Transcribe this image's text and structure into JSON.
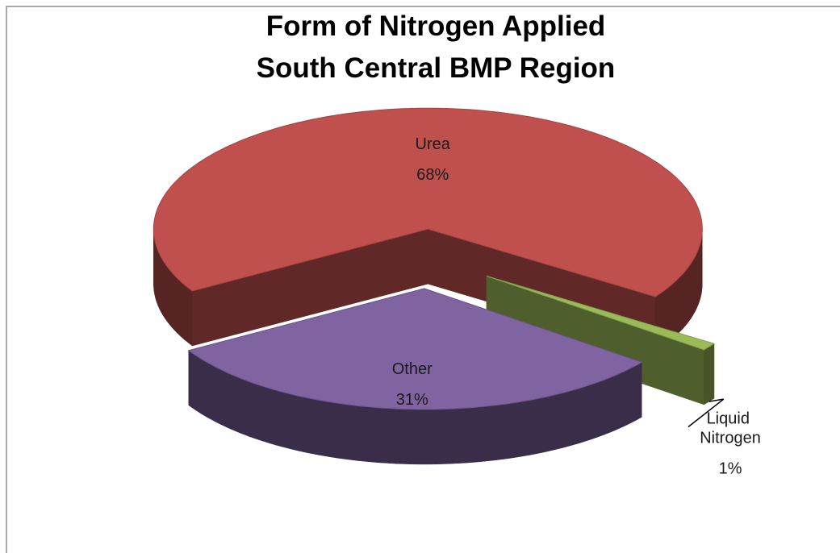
{
  "chart_data": {
    "type": "pie",
    "title": [
      "Form of Nitrogen Applied",
      "South Central BMP Region"
    ],
    "categories": [
      "Urea",
      "Other",
      "Liquid Nitrogen"
    ],
    "values": [
      68,
      31,
      1
    ],
    "value_labels": [
      "68%",
      "31%",
      "1%"
    ],
    "colors": [
      "#c0504d",
      "#8064a2",
      "#9bbb59"
    ],
    "exploded": true,
    "three_d": true
  }
}
